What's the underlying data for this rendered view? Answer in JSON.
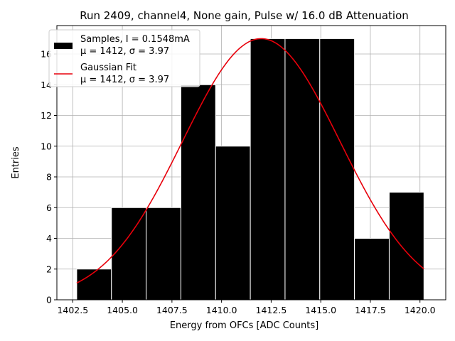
{
  "chart_data": {
    "type": "bar",
    "title": "Run 2409, channel4, None gain, Pulse w/ 16.0 dB Attenuation",
    "xlabel": "Energy from OFCs [ADC Counts]",
    "ylabel": "Entries",
    "xlim": [
      1401.7,
      1421.3
    ],
    "ylim": [
      0,
      17.85
    ],
    "xticks": [
      1402.5,
      1405.0,
      1407.5,
      1410.0,
      1412.5,
      1415.0,
      1417.5,
      1420.0
    ],
    "xtick_labels": [
      "1402.5",
      "1405.0",
      "1407.5",
      "1410.0",
      "1412.5",
      "1415.0",
      "1417.5",
      "1420.0"
    ],
    "yticks": [
      0,
      2,
      4,
      6,
      8,
      10,
      12,
      14,
      16
    ],
    "ytick_labels": [
      "0",
      "2",
      "4",
      "6",
      "8",
      "10",
      "12",
      "14",
      "16"
    ],
    "grid": true,
    "legend_position": "top-left",
    "bins": [
      {
        "x0": 1402.7,
        "x1": 1404.45,
        "count": 2
      },
      {
        "x0": 1404.45,
        "x1": 1406.2,
        "count": 6
      },
      {
        "x0": 1406.2,
        "x1": 1407.95,
        "count": 6
      },
      {
        "x0": 1407.95,
        "x1": 1409.7,
        "count": 14
      },
      {
        "x0": 1409.7,
        "x1": 1411.45,
        "count": 10
      },
      {
        "x0": 1411.45,
        "x1": 1413.2,
        "count": 17
      },
      {
        "x0": 1413.2,
        "x1": 1414.95,
        "count": 17
      },
      {
        "x0": 1414.95,
        "x1": 1416.7,
        "count": 17
      },
      {
        "x0": 1416.7,
        "x1": 1418.45,
        "count": 4
      },
      {
        "x0": 1418.45,
        "x1": 1420.2,
        "count": 7
      }
    ],
    "series": [
      {
        "name": "Samples, I = 0.1548mA",
        "stat_line": "μ = 1412, σ = 3.97",
        "kind": "histogram",
        "color": "#000000"
      },
      {
        "name": "Gaussian Fit",
        "stat_line": "μ = 1412, σ = 3.97",
        "kind": "line",
        "color": "#e8000b",
        "amplitude": 17.0,
        "mean": 1412.0,
        "sigma": 3.97,
        "x_range": [
          1402.7,
          1420.2
        ]
      }
    ]
  }
}
